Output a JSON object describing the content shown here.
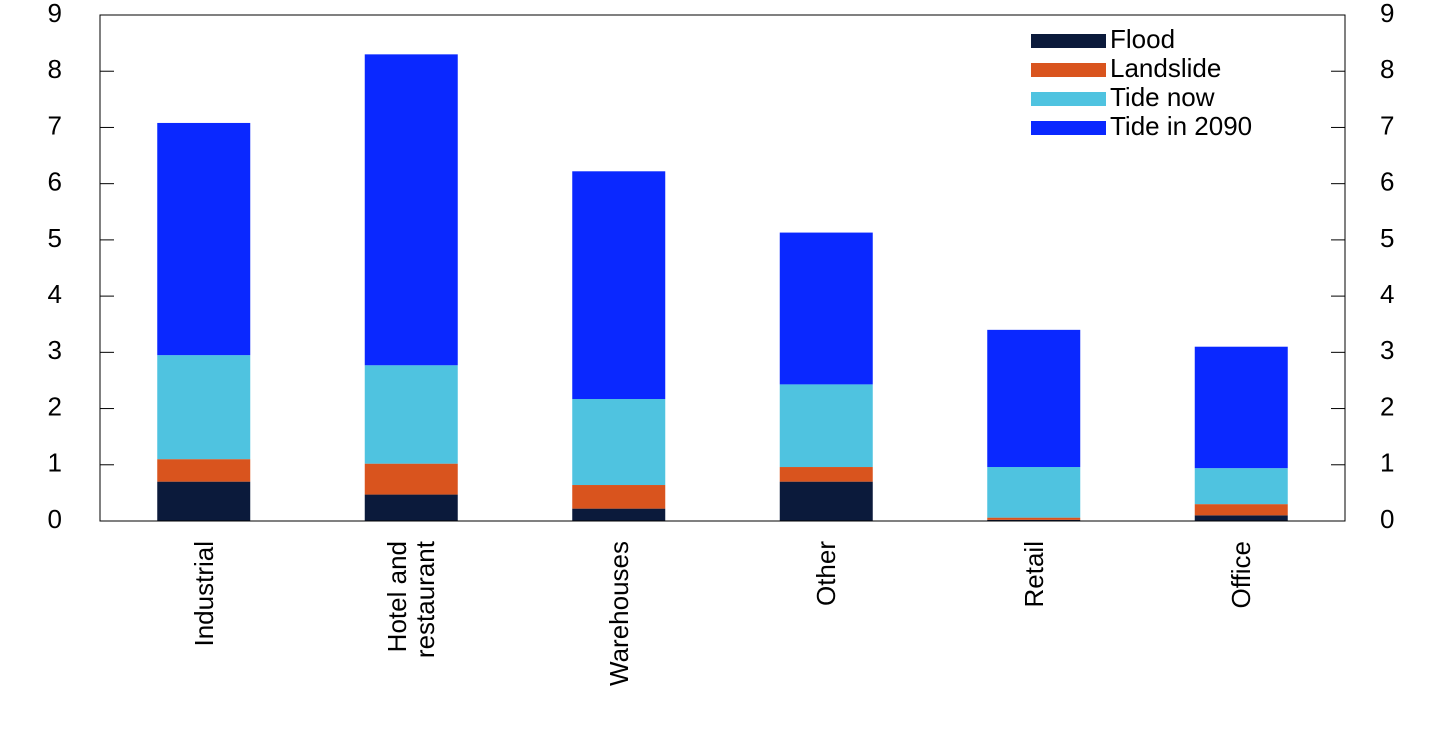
{
  "chart_data": {
    "type": "stacked_bar",
    "categories": [
      "Industrial",
      "Hotel and restaurant",
      "Warehouses",
      "Other",
      "Retail",
      "Office"
    ],
    "series": [
      {
        "name": "Flood",
        "color": "#0b1a3b",
        "values": [
          0.7,
          0.47,
          0.22,
          0.7,
          0.02,
          0.1
        ]
      },
      {
        "name": "Landslide",
        "color": "#d9541e",
        "values": [
          0.4,
          0.55,
          0.42,
          0.26,
          0.04,
          0.2
        ]
      },
      {
        "name": "Tide now",
        "color": "#4fc3e0",
        "values": [
          1.85,
          1.75,
          1.53,
          1.47,
          0.9,
          0.64
        ]
      },
      {
        "name": "Tide in 2090",
        "color": "#0a28ff",
        "values": [
          4.13,
          5.53,
          4.05,
          2.7,
          2.44,
          2.16
        ]
      }
    ],
    "ylim": [
      0,
      9
    ],
    "yticks": [
      0,
      1,
      2,
      3,
      4,
      5,
      6,
      7,
      8,
      9
    ],
    "y2lim": [
      0,
      9
    ],
    "y2ticks": [
      0,
      1,
      2,
      3,
      4,
      5,
      6,
      7,
      8,
      9
    ],
    "legend": "upper right"
  }
}
